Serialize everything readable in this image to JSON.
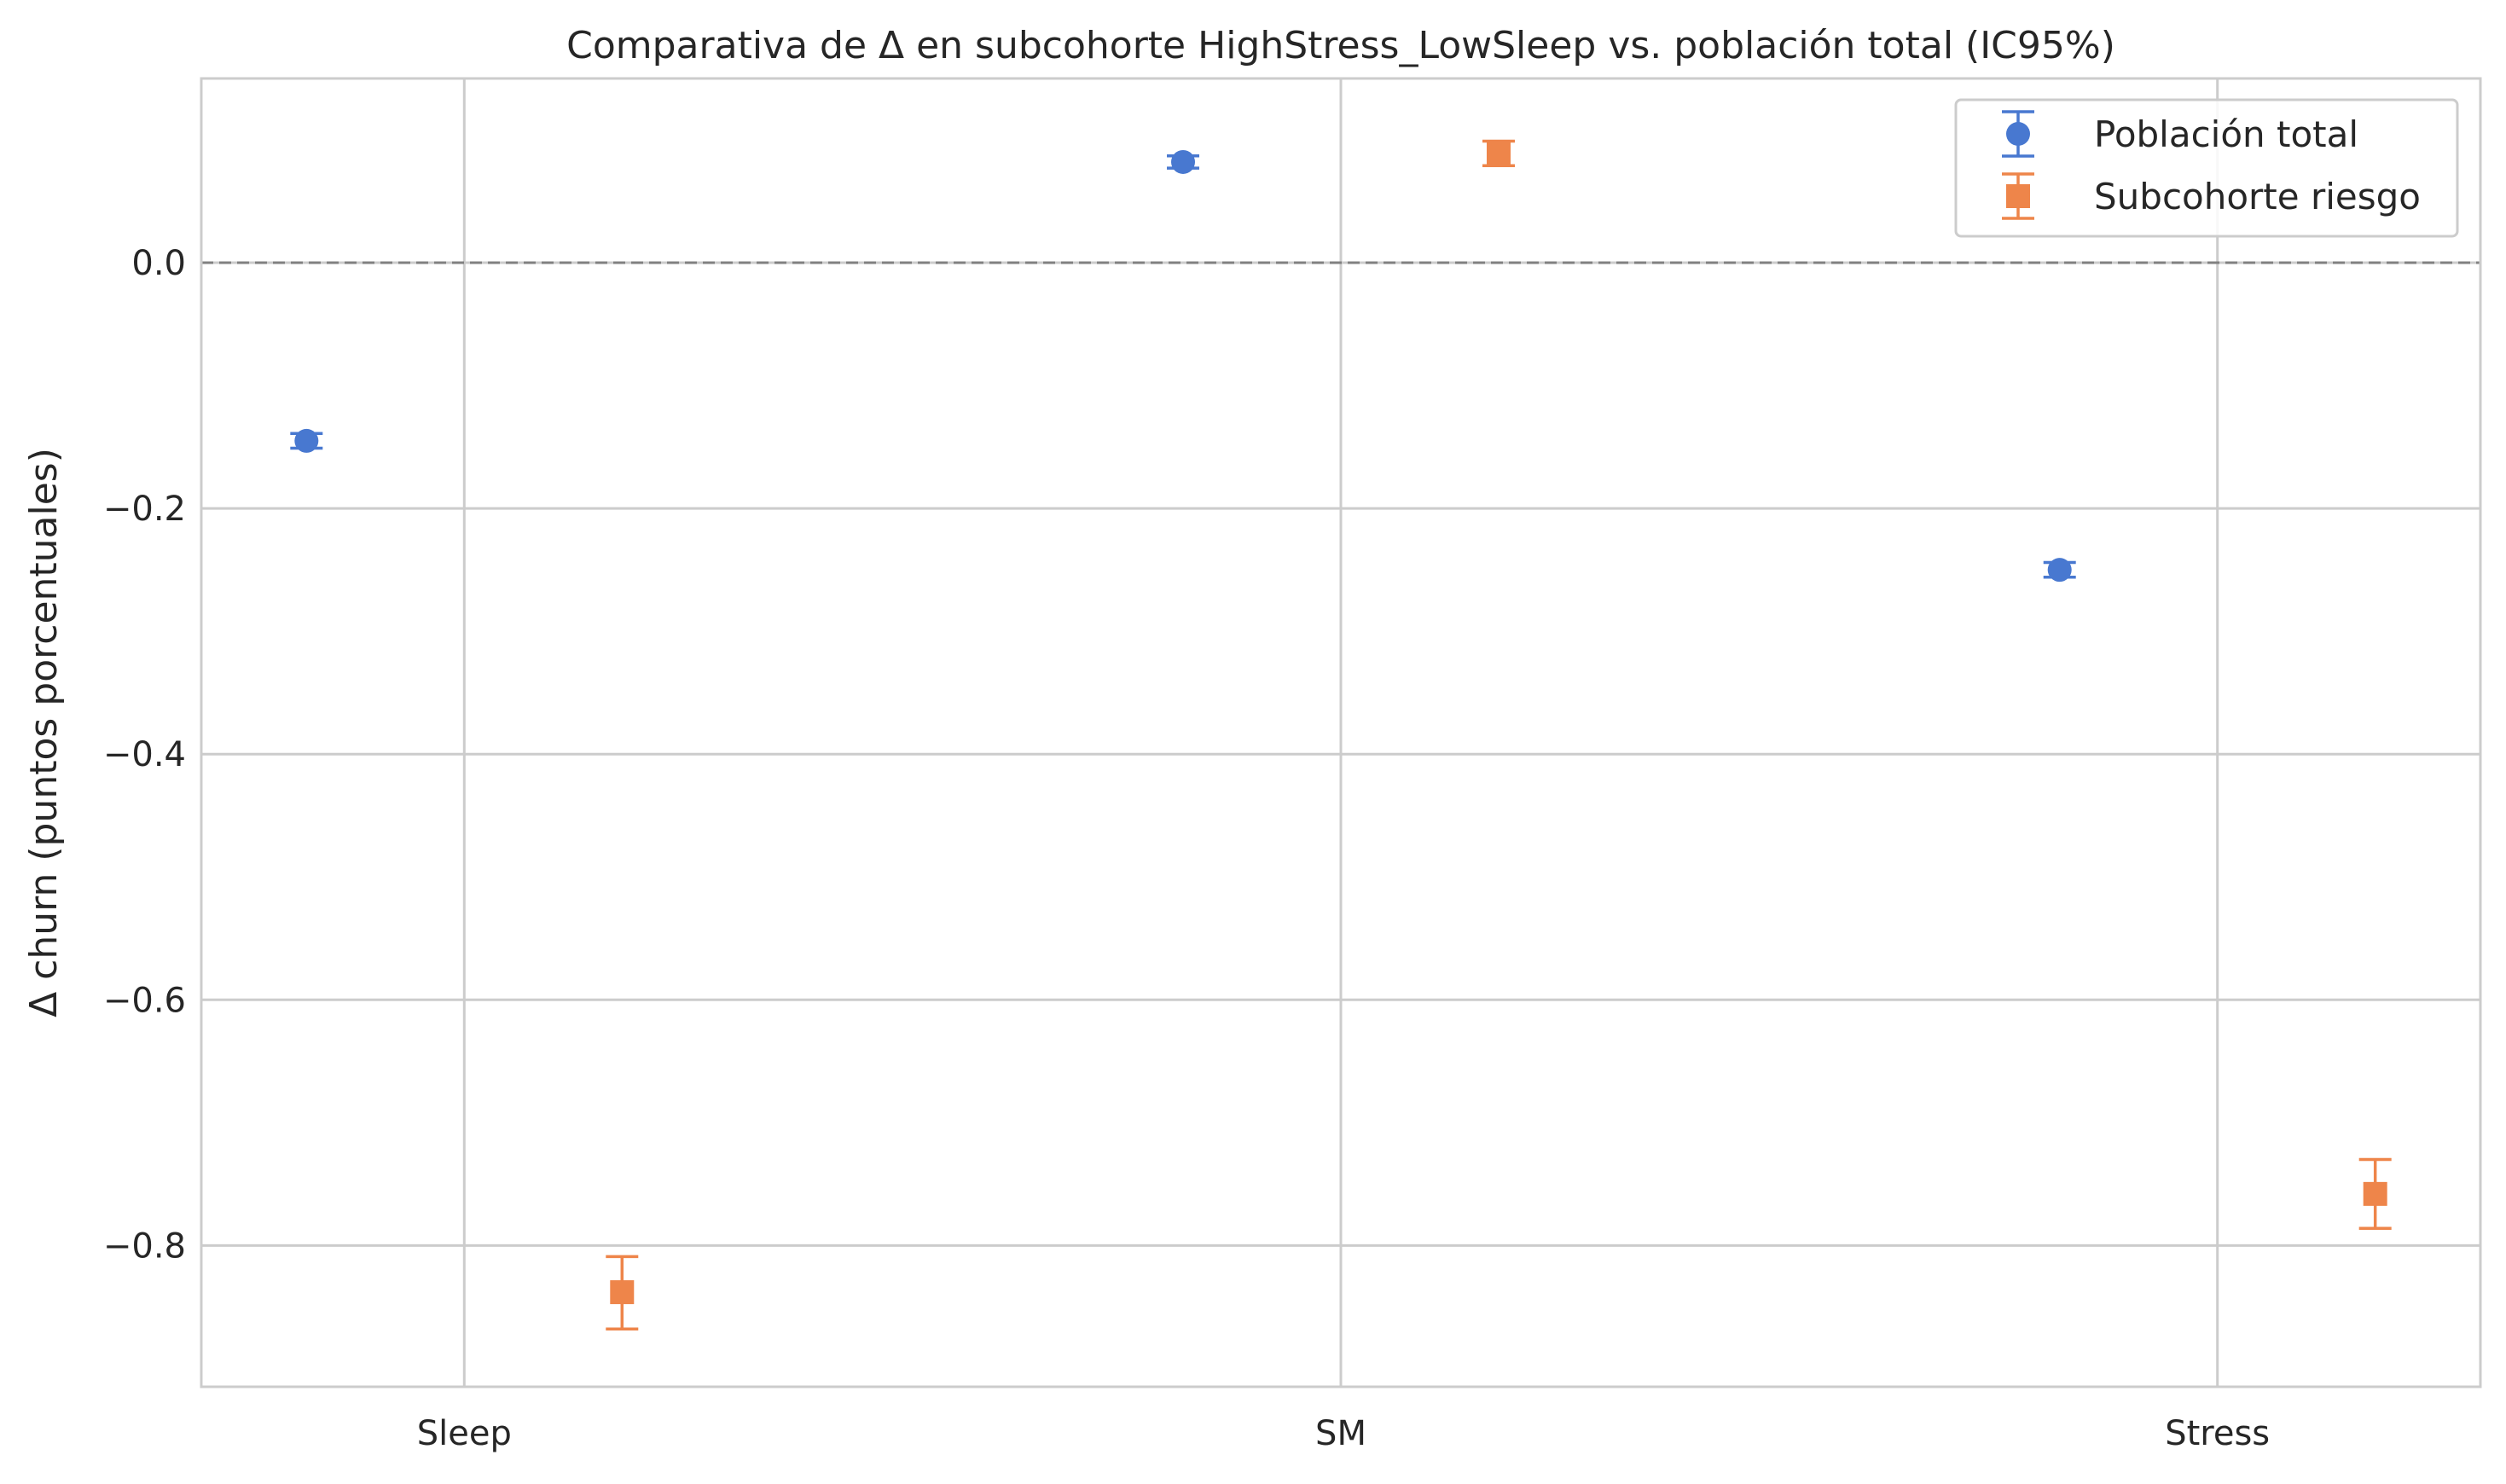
{
  "chart_data": {
    "type": "scatter",
    "title": "Comparativa de Δ en subcohorte HighStress_LowSleep vs. población total (IC95%)",
    "xlabel": "",
    "ylabel": "Δ churn (puntos porcentuales)",
    "categories": [
      "Sleep",
      "SM",
      "Stress"
    ],
    "ylim": [
      -0.915,
      0.15
    ],
    "yticks": [
      0.0,
      -0.2,
      -0.4,
      -0.6,
      -0.8
    ],
    "ytick_labels": [
      "0.0",
      "−0.2",
      "−0.4",
      "−0.6",
      "−0.8"
    ],
    "grid": true,
    "reference_line": 0.0,
    "legend_position": "top-right",
    "series": [
      {
        "name": "Población total",
        "marker": "circle",
        "color": "#4878d0",
        "values": [
          -0.145,
          0.082,
          -0.25
        ],
        "ci_low": [
          -0.151,
          0.077,
          -0.256
        ],
        "ci_high": [
          -0.139,
          0.087,
          -0.244
        ]
      },
      {
        "name": "Subcohorte riesgo",
        "marker": "square",
        "color": "#ee854a",
        "values": [
          -0.838,
          0.089,
          -0.758
        ],
        "ci_low": [
          -0.868,
          0.079,
          -0.786
        ],
        "ci_high": [
          -0.809,
          0.099,
          -0.73
        ]
      }
    ]
  }
}
